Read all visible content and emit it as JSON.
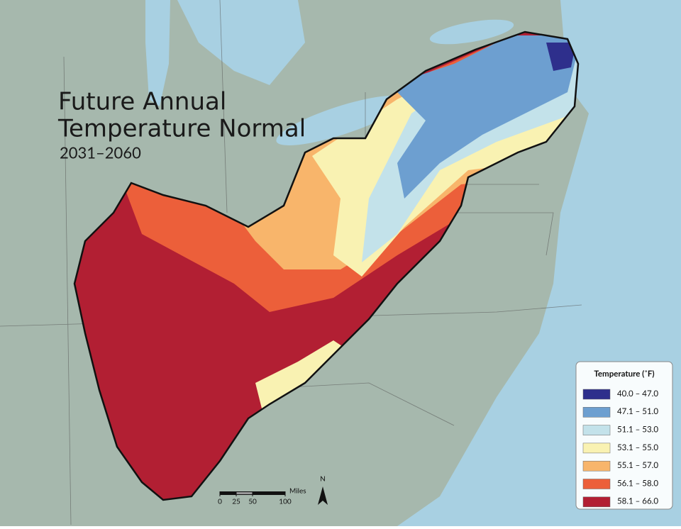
{
  "title_lines": [
    "Future Annual",
    "Temperature Normal"
  ],
  "subtitle": "2031–2060",
  "legend": {
    "title": "Temperature (˚F)",
    "items": [
      {
        "label": "40.0 – 47.0",
        "color": "#2e2f8c"
      },
      {
        "label": "47.1 – 51.0",
        "color": "#6d9fd0"
      },
      {
        "label": "51.1 – 53.0",
        "color": "#c3e2ea"
      },
      {
        "label": "53.1 – 55.0",
        "color": "#f9f2b2"
      },
      {
        "label": "55.1 – 57.0",
        "color": "#f8b56b"
      },
      {
        "label": "56.1 – 58.0",
        "color": "#ec5f3a"
      },
      {
        "label": "58.1 – 66.0",
        "color": "#b21f33"
      }
    ]
  },
  "scale": {
    "unit": "Miles",
    "ticks": [
      0,
      25,
      50,
      100
    ]
  },
  "north": "N"
}
